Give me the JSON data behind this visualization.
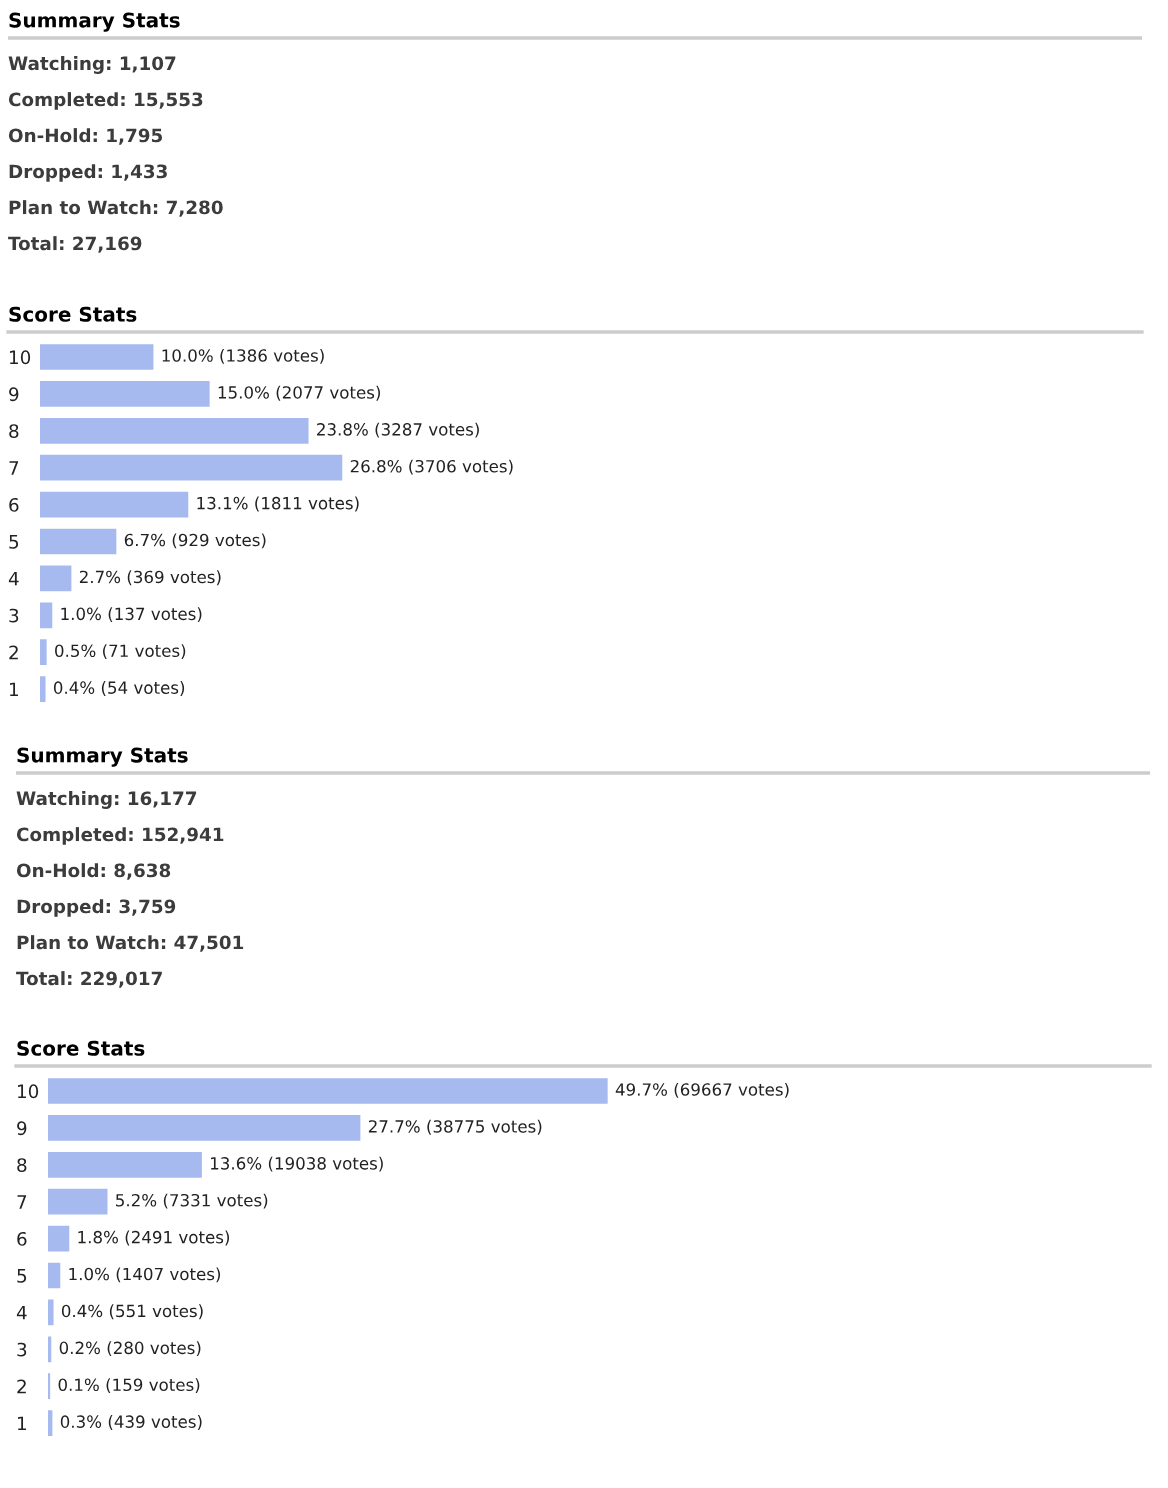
{
  "chart_data": [
    {
      "type": "other",
      "title": "Summary Stats",
      "annotations": [
        "Watching: 1,107",
        "Completed: 15,553",
        "On-Hold: 1,795",
        "Dropped: 1,433",
        "Plan to Watch: 7,280",
        "Total: 27,169"
      ]
    },
    {
      "type": "bar",
      "orientation": "horizontal",
      "title": "Score Stats",
      "categories": [
        "10",
        "9",
        "8",
        "7",
        "6",
        "5",
        "4",
        "3",
        "2",
        "1"
      ],
      "values": [
        10.0,
        15.0,
        23.8,
        26.8,
        13.1,
        6.7,
        2.7,
        1.0,
        0.5,
        0.4
      ],
      "value_labels": [
        "10.0% (1386 votes)",
        "15.0% (2077 votes)",
        "23.8% (3287 votes)",
        "26.8% (3706 votes)",
        "13.1% (1811 votes)",
        "6.7% (929 votes)",
        "2.7% (369 votes)",
        "1.0% (137 votes)",
        "0.5% (71 votes)",
        "0.4% (54 votes)"
      ],
      "color": "#a6baf0",
      "tick_labels": "y"
    },
    {
      "type": "other",
      "title": "Summary Stats",
      "annotations": [
        "Watching: 16,177",
        "Completed: 152,941",
        "On-Hold: 8,638",
        "Dropped: 3,759",
        "Plan to Watch: 47,501",
        "Total: 229,017"
      ]
    },
    {
      "type": "bar",
      "orientation": "horizontal",
      "title": "Score Stats",
      "categories": [
        "10",
        "9",
        "8",
        "7",
        "6",
        "5",
        "4",
        "3",
        "2",
        "1"
      ],
      "values": [
        49.7,
        27.7,
        13.6,
        5.2,
        1.8,
        1.0,
        0.4,
        0.2,
        0.1,
        0.3
      ],
      "value_labels": [
        "49.7% (69667 votes)",
        "27.7% (38775 votes)",
        "13.6% (19038 votes)",
        "5.2% (7331 votes)",
        "1.8% (2491 votes)",
        "1.0% (1407 votes)",
        "0.4% (551 votes)",
        "0.2% (280 votes)",
        "0.1% (159 votes)",
        "0.3% (439 votes)"
      ],
      "color": "#a6baf0",
      "tick_labels": "y"
    }
  ]
}
